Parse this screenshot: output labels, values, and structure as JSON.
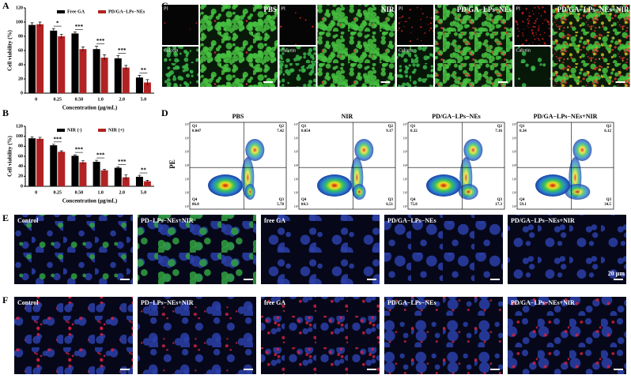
{
  "panel_labels": [
    "A",
    "B",
    "C",
    "D",
    "E",
    "F"
  ],
  "chart_data": [
    {
      "type": "bar",
      "ylabel": "Cell viability (%)",
      "xlabel": "Concentration (μg/mL)",
      "categories": [
        "0",
        "0.25",
        "0.50",
        "1.0",
        "2.0",
        "5.0"
      ],
      "series": [
        {
          "name": "Free GA",
          "color": "#000000",
          "values": [
            96,
            88,
            84,
            62,
            49,
            22
          ],
          "errors": [
            3,
            3,
            2,
            4,
            4,
            3
          ]
        },
        {
          "name": "PD/GA−LPs−NEs",
          "color": "#b22222",
          "values": [
            97,
            80,
            62,
            50,
            36,
            15
          ],
          "errors": [
            3,
            3,
            3,
            4,
            3,
            4
          ]
        }
      ],
      "significance": [
        null,
        "*",
        "***",
        "***",
        "***",
        "**"
      ],
      "ylim": [
        0,
        120
      ],
      "yticks": [
        0,
        20,
        40,
        60,
        80,
        100,
        120
      ]
    },
    {
      "type": "bar",
      "ylabel": "Cell viability (%)",
      "xlabel": "Concentration (μg/mL)",
      "categories": [
        "0",
        "0.25",
        "0.50",
        "1.0",
        "2.0",
        "5.0"
      ],
      "series": [
        {
          "name": "NIR (-)",
          "color": "#000000",
          "values": [
            96,
            82,
            61,
            49,
            37,
            19
          ],
          "errors": [
            3,
            2,
            2,
            3,
            2,
            3
          ]
        },
        {
          "name": "NIR (+)",
          "color": "#b22222",
          "values": [
            95,
            69,
            48,
            32,
            18,
            10
          ],
          "errors": [
            3,
            2,
            3,
            2,
            5,
            2
          ]
        }
      ],
      "significance": [
        null,
        "***",
        "***",
        "***",
        "***",
        "**"
      ],
      "ylim": [
        0,
        120
      ],
      "yticks": [
        0,
        20,
        40,
        60,
        80,
        100,
        120
      ]
    }
  ],
  "fluorescence": {
    "channels": [
      "PI",
      "Calcein"
    ],
    "groups": [
      "PBS",
      "NIR",
      "PD/GA−LPs−NEs",
      "PD/GA−LPs−NEs+NIR"
    ]
  },
  "flow": {
    "ylabel": "PE",
    "yticks": [
      "10⁷",
      "10⁶",
      "10⁵",
      "10⁴",
      "10³",
      "10²",
      "10¹"
    ],
    "quadrants": [
      "Q1",
      "Q2",
      "Q3",
      "Q4"
    ],
    "plots": [
      {
        "title": "PBS",
        "values": [
          "0.047",
          "7.42",
          "5.78",
          "86.8"
        ]
      },
      {
        "title": "NIR",
        "values": [
          "0.054",
          "9.17",
          "6.51",
          "84.3"
        ]
      },
      {
        "title": "PD/GA−LPs−NEs",
        "values": [
          "0.32",
          "7.16",
          "17.3",
          "75.0"
        ]
      },
      {
        "title": "PD/GA−LPs−NEs+NIR",
        "values": [
          "0.34",
          "6.12",
          "34.5",
          "59.1"
        ]
      }
    ]
  },
  "imaging": {
    "rows": [
      [
        "Control",
        "PD−LPs−NEs+NIR",
        "free GA",
        "PD/GA−LPs−NEs",
        "PD/GA−LPs−NEs+NIR"
      ],
      [
        "Control",
        "PD−LPs−NEs+NIR",
        "free GA",
        "PD/GA−LPs−NEs",
        "PD/GA−LPs−NEs+NIR"
      ]
    ],
    "scale_bar": "20 μm"
  }
}
